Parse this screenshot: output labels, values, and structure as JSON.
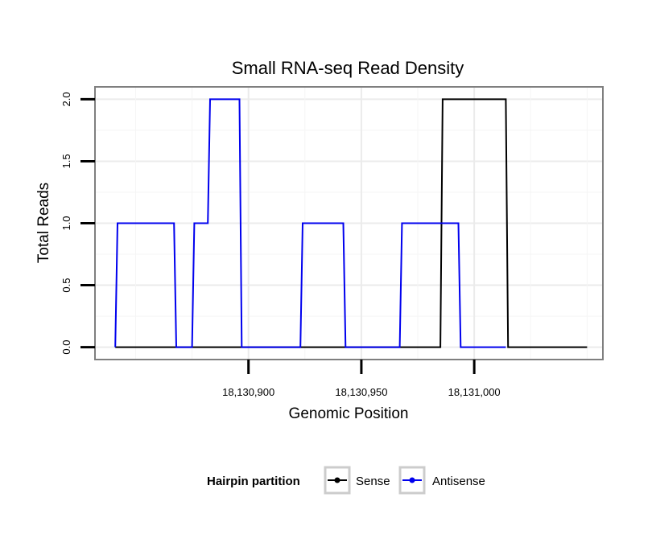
{
  "chart_data": {
    "type": "line",
    "title": "Small RNA-seq Read Density",
    "xlabel": "Genomic Position",
    "ylabel": "Total Reads",
    "xlim": [
      18130832,
      18131057
    ],
    "ylim": [
      -0.1,
      2.1
    ],
    "x_ticks": [
      {
        "value": 18130900,
        "label": "18,130,900"
      },
      {
        "value": 18130950,
        "label": "18,130,950"
      },
      {
        "value": 18131000,
        "label": "18,131,000"
      }
    ],
    "y_ticks": [
      {
        "value": 0.0,
        "label": "0.0"
      },
      {
        "value": 0.5,
        "label": "0.5"
      },
      {
        "value": 1.0,
        "label": "1.0"
      },
      {
        "value": 1.5,
        "label": "1.5"
      },
      {
        "value": 2.0,
        "label": "2.0"
      }
    ],
    "grid": true,
    "legend": {
      "title": "Hairpin partition",
      "position": "bottom",
      "entries": [
        "Sense",
        "Antisense"
      ]
    },
    "series": [
      {
        "name": "Sense",
        "color": "#000000",
        "x": [
          18130841,
          18130985,
          18130986,
          18131000,
          18131001,
          18131014,
          18131015,
          18131050
        ],
        "y": [
          0,
          0,
          2,
          2,
          2,
          2,
          0,
          0
        ]
      },
      {
        "name": "Antisense",
        "color": "#0000ee",
        "x": [
          18130841,
          18130842,
          18130867,
          18130868,
          18130875,
          18130876,
          18130882,
          18130883,
          18130896,
          18130897,
          18130923,
          18130924,
          18130942,
          18130943,
          18130967,
          18130968,
          18130993,
          18130994,
          18131013,
          18131014
        ],
        "y": [
          0,
          1,
          1,
          0,
          0,
          1,
          1,
          2,
          2,
          0,
          0,
          1,
          1,
          0,
          0,
          1,
          1,
          0,
          0,
          0
        ]
      }
    ]
  }
}
